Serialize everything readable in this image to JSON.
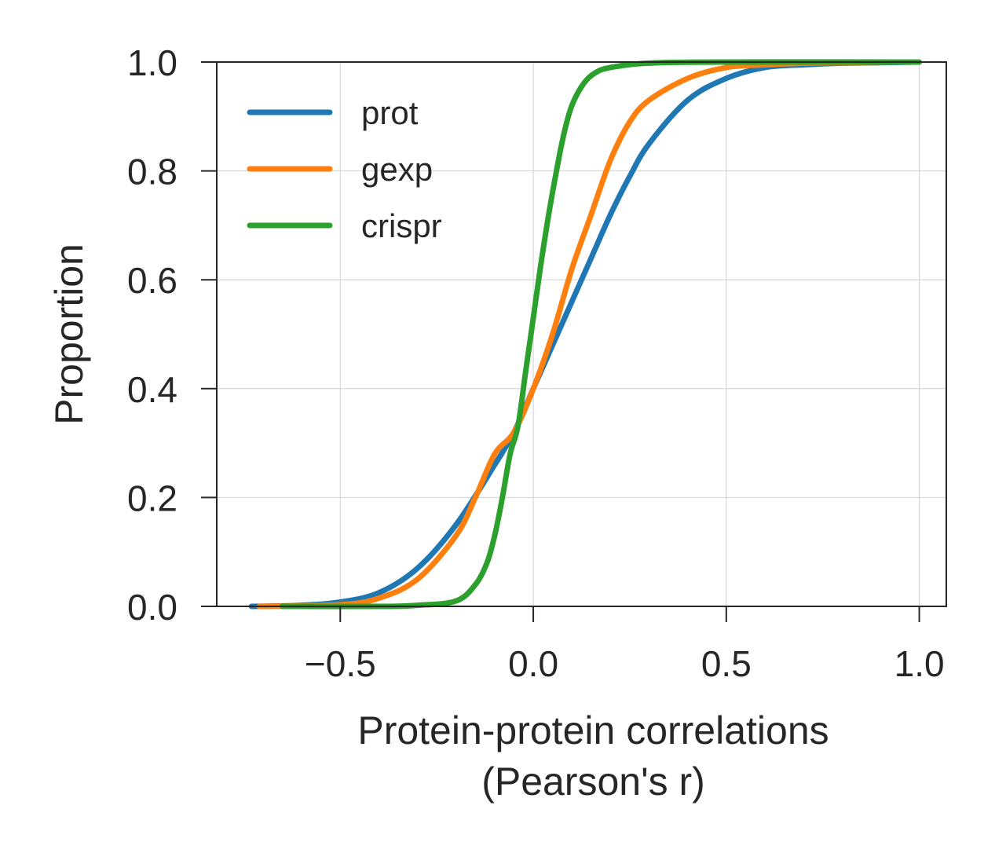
{
  "chart_data": {
    "type": "line",
    "title": "",
    "xlabel": [
      "Protein-protein correlations",
      "(Pearson's r)"
    ],
    "ylabel": "Proportion",
    "xlim": [
      -0.82,
      1.07
    ],
    "ylim": [
      0.0,
      1.0
    ],
    "xticks": [
      -0.5,
      0.0,
      0.5,
      1.0
    ],
    "xtick_labels": [
      "−0.5",
      "0.0",
      "0.5",
      "1.0"
    ],
    "yticks": [
      0.0,
      0.2,
      0.4,
      0.6,
      0.8,
      1.0
    ],
    "ytick_labels": [
      "0.0",
      "0.2",
      "0.4",
      "0.6",
      "0.8",
      "1.0"
    ],
    "grid": true,
    "legend_position": "top-left",
    "series": [
      {
        "name": "prot",
        "color": "#1f77b4",
        "x": [
          -0.73,
          -0.6,
          -0.5,
          -0.4,
          -0.3,
          -0.2,
          -0.1,
          -0.05,
          0.0,
          0.05,
          0.1,
          0.15,
          0.2,
          0.25,
          0.3,
          0.4,
          0.5,
          0.6,
          0.7,
          0.8,
          0.9,
          0.99
        ],
        "y": [
          0.0,
          0.002,
          0.008,
          0.025,
          0.07,
          0.15,
          0.26,
          0.32,
          0.4,
          0.48,
          0.56,
          0.64,
          0.72,
          0.79,
          0.85,
          0.93,
          0.97,
          0.99,
          0.995,
          0.998,
          0.999,
          1.0
        ]
      },
      {
        "name": "gexp",
        "color": "#ff7f0e",
        "x": [
          -0.71,
          -0.5,
          -0.4,
          -0.3,
          -0.2,
          -0.15,
          -0.1,
          -0.05,
          0.0,
          0.05,
          0.1,
          0.15,
          0.2,
          0.25,
          0.3,
          0.4,
          0.5,
          0.6,
          0.7,
          0.8,
          0.94
        ],
        "y": [
          0.0,
          0.003,
          0.015,
          0.05,
          0.13,
          0.2,
          0.28,
          0.32,
          0.4,
          0.5,
          0.62,
          0.72,
          0.82,
          0.89,
          0.93,
          0.97,
          0.99,
          0.995,
          0.998,
          0.999,
          1.0
        ]
      },
      {
        "name": "crispr",
        "color": "#2ca02c",
        "x": [
          -0.65,
          -0.4,
          -0.3,
          -0.2,
          -0.15,
          -0.12,
          -0.1,
          -0.08,
          -0.06,
          -0.04,
          -0.02,
          0.0,
          0.02,
          0.04,
          0.06,
          0.08,
          0.1,
          0.13,
          0.16,
          0.2,
          0.3,
          0.5,
          1.0
        ],
        "y": [
          0.0,
          0.0,
          0.002,
          0.01,
          0.04,
          0.08,
          0.13,
          0.2,
          0.28,
          0.33,
          0.43,
          0.53,
          0.63,
          0.72,
          0.8,
          0.87,
          0.92,
          0.96,
          0.98,
          0.99,
          0.998,
          1.0,
          1.0
        ]
      }
    ]
  }
}
